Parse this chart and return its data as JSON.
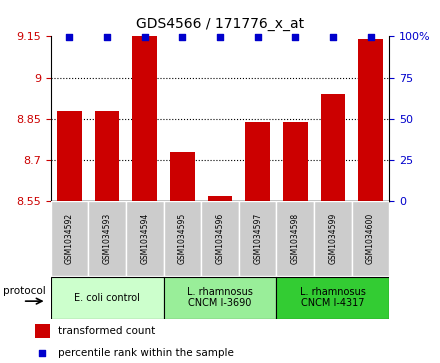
{
  "title": "GDS4566 / 171776_x_at",
  "samples": [
    "GSM1034592",
    "GSM1034593",
    "GSM1034594",
    "GSM1034595",
    "GSM1034596",
    "GSM1034597",
    "GSM1034598",
    "GSM1034599",
    "GSM1034600"
  ],
  "transformed_counts": [
    8.88,
    8.88,
    9.15,
    8.73,
    8.57,
    8.84,
    8.84,
    8.94,
    9.14
  ],
  "percentile_ranks": [
    100,
    100,
    100,
    100,
    100,
    100,
    100,
    100,
    100
  ],
  "ylim": [
    8.55,
    9.15
  ],
  "yticks": [
    8.55,
    8.7,
    8.85,
    9.0,
    9.15
  ],
  "right_yticks": [
    0,
    25,
    50,
    75,
    100
  ],
  "right_ylim": [
    0,
    100
  ],
  "bar_color": "#cc0000",
  "percentile_color": "#0000cc",
  "groups": [
    {
      "label": "E. coli control",
      "indices": [
        0,
        1,
        2
      ],
      "color": "#ccffcc"
    },
    {
      "label": "L. rhamnosus\nCNCM I-3690",
      "indices": [
        3,
        4,
        5
      ],
      "color": "#99ee99"
    },
    {
      "label": "L. rhamnosus\nCNCM I-4317",
      "indices": [
        6,
        7,
        8
      ],
      "color": "#33cc33"
    }
  ],
  "legend_bar_label": "transformed count",
  "legend_dot_label": "percentile rank within the sample",
  "protocol_label": "protocol",
  "tick_label_color_left": "#cc0000",
  "tick_label_color_right": "#0000cc",
  "sample_box_color": "#cccccc",
  "ytick_labels": [
    "8.55",
    "8.7",
    "8.85",
    "9",
    "9.15"
  ]
}
